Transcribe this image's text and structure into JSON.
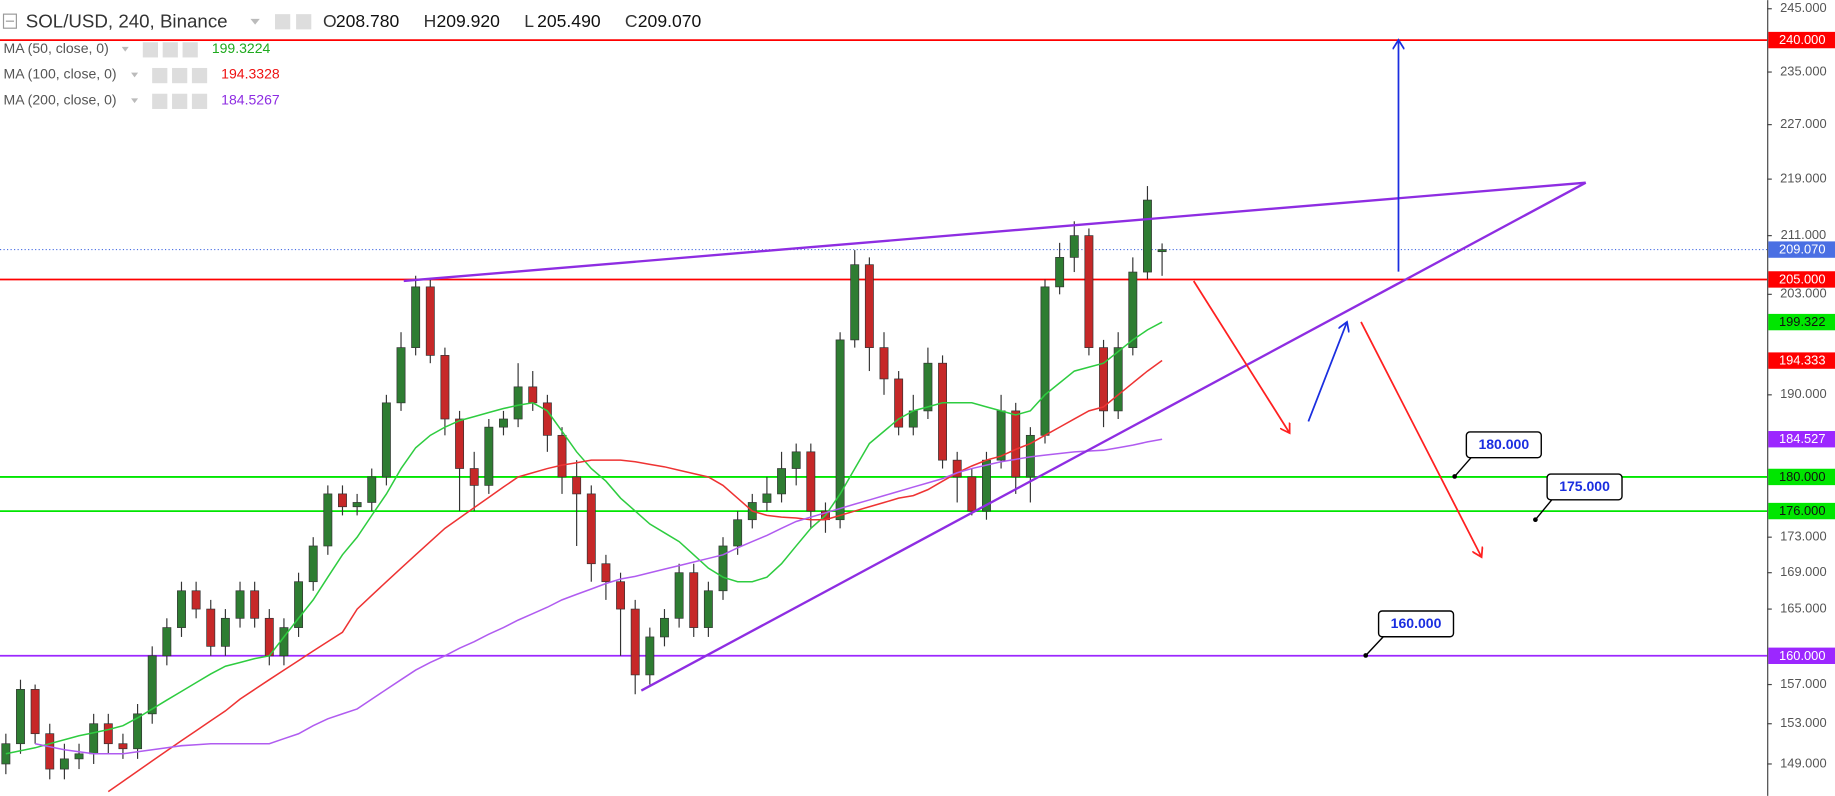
{
  "chart_data": {
    "type": "candlestick",
    "title": "SOL/USD, 240, Binance",
    "ohlc_header": [
      {
        "key": "O",
        "value": "208.780"
      },
      {
        "key": "H",
        "value": "209.920"
      },
      {
        "key": "L",
        "value": "205.490"
      },
      {
        "key": "C",
        "value": "209.070"
      }
    ],
    "log_scale": true,
    "ylim": [
      145.9,
      246.4
    ],
    "yticks": [
      {
        "value": 245,
        "label": "245.000"
      },
      {
        "value": 235,
        "label": "235.000"
      },
      {
        "value": 227,
        "label": "227.000"
      },
      {
        "value": 219,
        "label": "219.000"
      },
      {
        "value": 211,
        "label": "211.000"
      },
      {
        "value": 203,
        "label": "203.000"
      },
      {
        "value": 190,
        "label": "190.000"
      },
      {
        "value": 173,
        "label": "173.000"
      },
      {
        "value": 169,
        "label": "169.000"
      },
      {
        "value": 165,
        "label": "165.000"
      },
      {
        "value": 157,
        "label": "157.000"
      },
      {
        "value": 153,
        "label": "153.000"
      },
      {
        "value": 149,
        "label": "149.000"
      }
    ],
    "up_color": "#2e7d32",
    "down_color": "#c62828",
    "candles": {
      "open": [
        149,
        151,
        156.5,
        152,
        148.5,
        149.5,
        150,
        153,
        151,
        150.5,
        154,
        160,
        163,
        167,
        165,
        161,
        164,
        167,
        164,
        160,
        163,
        168,
        172,
        178,
        176.5,
        177,
        180,
        189,
        196,
        204,
        195,
        187,
        181,
        179,
        186,
        187,
        191,
        189,
        185,
        180,
        178,
        170,
        168,
        165,
        158,
        162,
        164,
        169,
        163,
        167,
        172,
        175,
        177,
        178,
        181,
        183,
        176,
        175,
        197,
        207,
        196,
        192,
        186,
        188,
        194,
        182,
        180,
        176,
        182,
        188,
        180,
        185,
        204,
        208,
        211,
        196,
        188,
        196,
        206,
        208.78
      ],
      "high": [
        152,
        157.5,
        157,
        153,
        151,
        151,
        154,
        154,
        152,
        155,
        161,
        164,
        168,
        168,
        166,
        165,
        168,
        168,
        165,
        164,
        169,
        173,
        179,
        179,
        178,
        181,
        190,
        198,
        205.5,
        205,
        196,
        188,
        183,
        187,
        188,
        194,
        193,
        190,
        186,
        182,
        179,
        171,
        169,
        166,
        163,
        165,
        170,
        170,
        168,
        173,
        176,
        178,
        180,
        183,
        184,
        184,
        177,
        198,
        209,
        208,
        198,
        193,
        190,
        196,
        195,
        183,
        181,
        183,
        190,
        189,
        186,
        205,
        210,
        213,
        212,
        197,
        198,
        208,
        218,
        209.92
      ],
      "low": [
        148,
        150,
        151,
        147.5,
        147.5,
        148.5,
        149,
        150,
        149.5,
        149.5,
        153,
        159,
        162,
        164,
        160,
        160,
        163,
        163,
        159,
        159,
        162,
        167,
        171,
        175.5,
        175.5,
        176,
        179,
        188,
        195,
        194,
        185,
        176,
        176,
        178,
        185,
        186,
        188,
        183,
        178,
        172,
        168,
        166,
        160,
        156,
        157,
        161,
        163,
        162,
        162,
        166,
        171,
        174,
        176,
        177,
        179,
        174,
        173.5,
        174,
        196,
        193,
        190,
        185,
        185,
        187,
        181,
        177,
        175.5,
        175,
        181,
        178,
        177,
        184,
        203,
        206,
        195,
        186,
        187,
        195,
        205,
        205.49
      ],
      "close": [
        151,
        156.5,
        152,
        148.5,
        149.5,
        150,
        153,
        151,
        150.5,
        154,
        160,
        163,
        167,
        165,
        161,
        164,
        167,
        164,
        160,
        163,
        168,
        172,
        178,
        176.5,
        177,
        180,
        189,
        196,
        204,
        195,
        187,
        181,
        179,
        186,
        187,
        191,
        189,
        185,
        180,
        178,
        170,
        168,
        165,
        158,
        162,
        164,
        169,
        163,
        167,
        172,
        175,
        177,
        178,
        181,
        183,
        176,
        175,
        197,
        207,
        196,
        192,
        186,
        188,
        194,
        182,
        180,
        176,
        182,
        188,
        180,
        185,
        204,
        208,
        211,
        196,
        188,
        196,
        206,
        216,
        209.07
      ]
    },
    "series": [
      {
        "name": "MA (50, close, 0)",
        "color": "#2ecc40",
        "value_label": "199.3224",
        "label_color": "#1faa1f",
        "values": [
          150,
          150.3,
          150.6,
          151,
          151.4,
          151.8,
          152.1,
          152.4,
          152.8,
          153.6,
          154.5,
          155.4,
          156.3,
          157.2,
          158.1,
          158.9,
          159.3,
          159.7,
          160,
          162,
          164,
          166,
          168.5,
          171,
          173,
          175.5,
          178,
          181,
          183.5,
          185,
          186,
          186.8,
          187.3,
          187.8,
          188.3,
          188.7,
          189,
          188,
          185.5,
          183,
          181,
          179.5,
          177.5,
          176,
          174.5,
          173.5,
          172.5,
          171,
          169.5,
          168.5,
          168,
          168,
          168.5,
          170,
          172,
          174,
          175.5,
          178,
          181,
          184,
          185.5,
          187,
          188,
          188.5,
          189,
          189,
          189,
          188.5,
          188,
          187.5,
          188,
          190,
          191.5,
          193,
          193.5,
          194,
          195.5,
          197,
          198.3,
          199.3224
        ]
      },
      {
        "name": "MA (100, close, 0)",
        "color": "#ee3333",
        "value_label": "194.3328",
        "label_color": "#ee1111",
        "values": [
          null,
          null,
          null,
          null,
          null,
          null,
          null,
          146.3,
          147.3,
          148.3,
          149.3,
          150.3,
          151.3,
          152.3,
          153.3,
          154.3,
          155.5,
          156.5,
          157.5,
          158.5,
          159.5,
          160.5,
          161.5,
          162.5,
          165,
          166.5,
          168,
          169.5,
          171,
          172.5,
          174,
          175.2,
          176.4,
          177.6,
          178.8,
          180,
          180.5,
          181,
          181.4,
          181.7,
          182,
          182,
          182,
          181.8,
          181.5,
          181.2,
          180.8,
          180.4,
          180,
          179,
          177.5,
          176,
          175.5,
          175.3,
          175.2,
          175,
          175,
          175.5,
          176,
          176.5,
          177,
          177.5,
          177.8,
          178.5,
          179.5,
          180.5,
          181.3,
          182,
          182.5,
          183.3,
          184,
          185,
          186,
          187,
          188,
          188.5,
          190,
          191.5,
          193,
          194.3328
        ]
      },
      {
        "name": "MA (200, close, 0)",
        "color": "#b05cf0",
        "value_label": "184.5267",
        "label_color": "#8e2de2",
        "values": [
          null,
          null,
          151,
          150.7,
          150.4,
          150.2,
          150,
          150,
          150,
          150.2,
          150.4,
          150.6,
          150.8,
          150.9,
          151,
          151,
          151,
          151,
          151,
          151.5,
          152,
          152.8,
          153.5,
          154,
          154.5,
          155.5,
          156.5,
          157.5,
          158.5,
          159.3,
          160,
          160.8,
          161.5,
          162.3,
          163,
          163.8,
          164.5,
          165.2,
          166,
          166.6,
          167.2,
          167.8,
          168.3,
          168.6,
          169,
          169.4,
          169.8,
          170.2,
          170.6,
          171,
          171.8,
          172.5,
          173.2,
          174,
          174.8,
          175.3,
          175.8,
          176.3,
          176.8,
          177.3,
          177.8,
          178.3,
          178.8,
          179.3,
          179.8,
          180.5,
          181,
          181.4,
          181.8,
          182.1,
          182.4,
          182.6,
          182.8,
          183,
          183.1,
          183.2,
          183.5,
          183.8,
          184.2,
          184.5267
        ]
      }
    ],
    "price_tags": [
      {
        "value": 240,
        "label": "240.000",
        "color": "#ff0000",
        "text_color": "#ffffff",
        "line": "solid"
      },
      {
        "value": 209.07,
        "label": "209.070",
        "color": "#4a6fe3",
        "text_color": "#ffffff",
        "line": "dotted"
      },
      {
        "value": 205,
        "label": "205.000",
        "color": "#ff0000",
        "text_color": "#ffffff",
        "line": "solid"
      },
      {
        "value": 199.322,
        "label": "199.322",
        "color": "#00e600",
        "text_color": "#111111"
      },
      {
        "value": 194.333,
        "label": "194.333",
        "color": "#ff0000",
        "text_color": "#ffffff"
      },
      {
        "value": 184.527,
        "label": "184.527",
        "color": "#9c27ff",
        "text_color": "#ffffff"
      },
      {
        "value": 180,
        "label": "180.000",
        "color": "#00e600",
        "text_color": "#111111",
        "line": "solid"
      },
      {
        "value": 176,
        "label": "176.000",
        "color": "#00e600",
        "text_color": "#111111",
        "line": "solid"
      },
      {
        "value": 160,
        "label": "160.000",
        "color": "#9c27ff",
        "text_color": "#ffffff",
        "line": "solid"
      }
    ],
    "callouts": [
      "180.000",
      "175.000",
      "160.000"
    ]
  }
}
